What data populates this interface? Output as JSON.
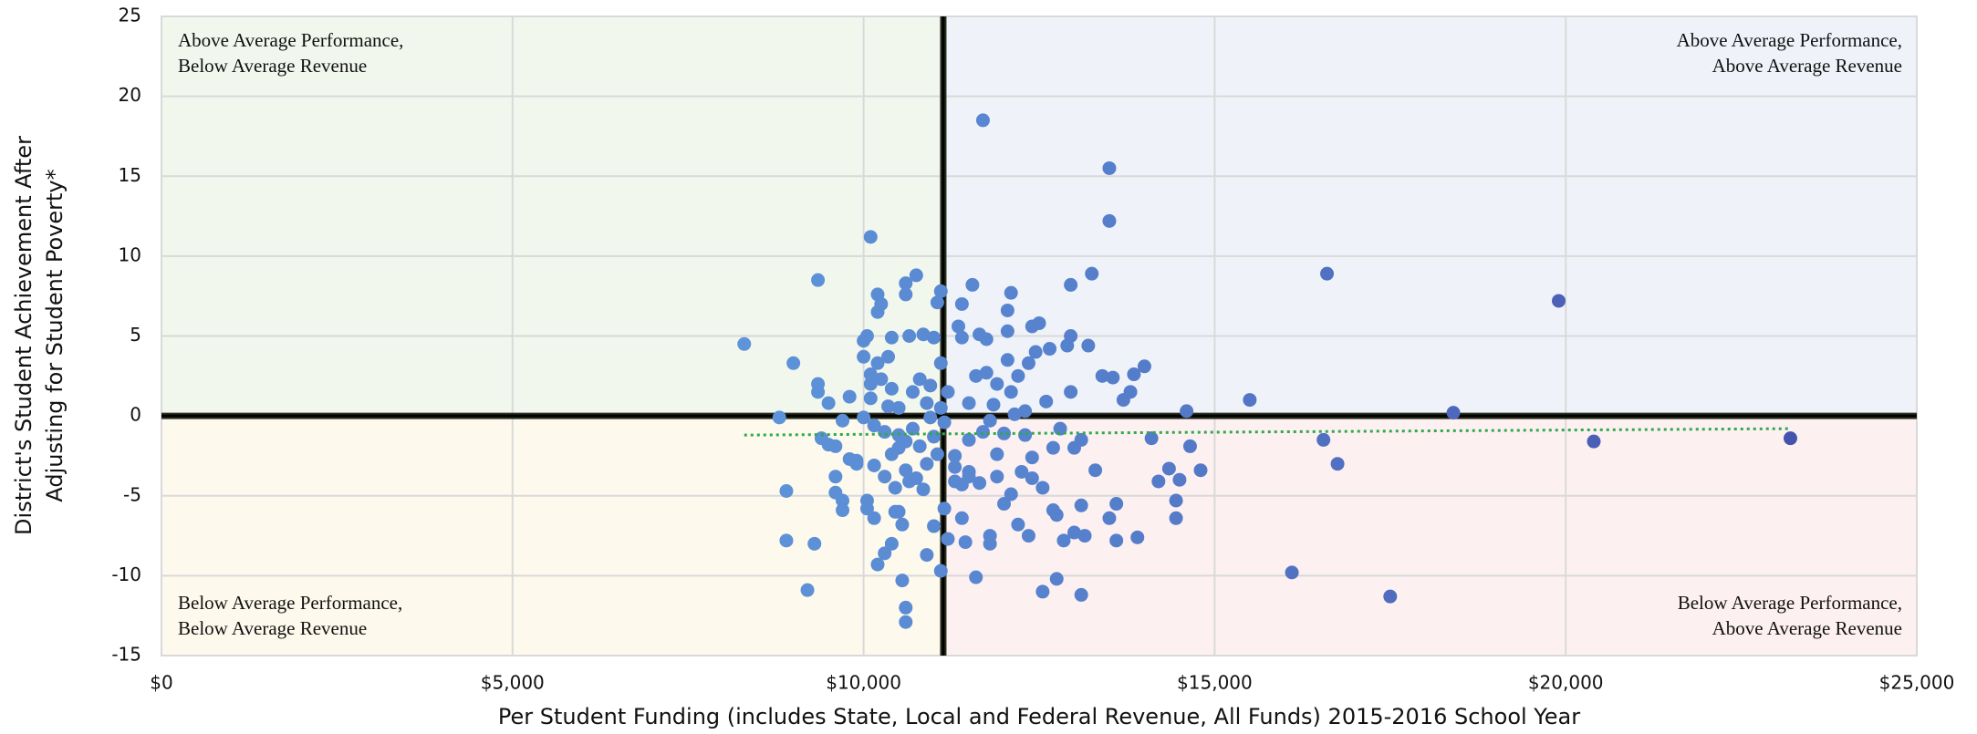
{
  "chart_data": {
    "type": "scatter",
    "x_label": "Per Student Funding (includes State, Local and Federal Revenue, All Funds) 2015-2016 School Year",
    "y_label": [
      "District's Student Achievement After",
      "Adjusting for Student Poverty*"
    ],
    "xlim": [
      0,
      25000
    ],
    "xticks": [
      {
        "value": 0,
        "label": "$0"
      },
      {
        "value": 5000,
        "label": "$5,000"
      },
      {
        "value": 10000,
        "label": "$10,000"
      },
      {
        "value": 15000,
        "label": "$15,000"
      },
      {
        "value": 20000,
        "label": "$20,000"
      },
      {
        "value": 25000,
        "label": "$25,000"
      }
    ],
    "ylim": [
      -15,
      25
    ],
    "yticks": [
      -15,
      -10,
      -5,
      0,
      5,
      10,
      15,
      20,
      25
    ],
    "grid": true,
    "mean_x": 11135,
    "mean_y": 0,
    "quadrant_colors": {
      "top-left": "#f2f7ee",
      "top-right": "#eff3f9",
      "bottom-left": "#fdf9ec",
      "bottom-right": "#fdf0f1"
    },
    "annotations": [
      {
        "corner": "top-left",
        "text": [
          "Above Average Performance,",
          "Below Average Revenue"
        ]
      },
      {
        "corner": "top-right",
        "text": [
          "Above Average Performance,",
          "Above Average Revenue"
        ]
      },
      {
        "corner": "bottom-left",
        "text": [
          "Below Average Performance,",
          "Below Average Revenue"
        ]
      },
      {
        "corner": "bottom-right",
        "text": [
          "Below Average Performance,",
          "Above Average Revenue"
        ]
      }
    ],
    "trend": {
      "x": [
        8300,
        23200
      ],
      "y": [
        -1.2,
        -0.8
      ],
      "color": "#2eaa4a"
    },
    "marker_colors": [
      "#5e95da",
      "#4553ae"
    ],
    "x": [
      8300,
      8800,
      8900,
      8900,
      9000,
      9200,
      9300,
      9350,
      9350,
      9350,
      9400,
      9500,
      9500,
      9600,
      9600,
      9600,
      9700,
      9700,
      9700,
      9800,
      9800,
      9900,
      9900,
      10000,
      10000,
      10000,
      10050,
      10050,
      10050,
      10100,
      10100,
      10100,
      10100,
      10150,
      10150,
      10150,
      10200,
      10200,
      10200,
      10200,
      10250,
      10250,
      10300,
      10300,
      10300,
      10350,
      10350,
      10400,
      10400,
      10400,
      10400,
      10450,
      10450,
      10500,
      10500,
      10500,
      10500,
      10550,
      10550,
      10600,
      10600,
      10600,
      10600,
      10600,
      10650,
      10650,
      10700,
      10700,
      10750,
      10750,
      10800,
      10800,
      10850,
      10850,
      10900,
      10900,
      10950,
      10950,
      11000,
      11000,
      11000,
      11050,
      11050,
      11100,
      11100,
      11100,
      11100,
      11150,
      11150,
      11200,
      11200,
      11300,
      11300,
      11350,
      11400,
      11400,
      11400,
      11450,
      11500,
      11500,
      11500,
      11550,
      11600,
      11600,
      11650,
      11650,
      11700,
      11700,
      11750,
      11750,
      11800,
      11800,
      11850,
      11900,
      11900,
      12000,
      12000,
      12050,
      12050,
      12050,
      12100,
      12100,
      12150,
      12200,
      12200,
      12250,
      12300,
      12350,
      12350,
      12400,
      12400,
      12450,
      12500,
      12550,
      12550,
      12600,
      12650,
      12700,
      12700,
      12750,
      12750,
      12800,
      12850,
      12900,
      12950,
      12950,
      12950,
      13000,
      13000,
      13100,
      13100,
      13100,
      13150,
      13200,
      13250,
      13300,
      13400,
      13500,
      13500,
      13500,
      13550,
      13600,
      13600,
      13700,
      13800,
      13850,
      13900,
      14000,
      14100,
      14200,
      14350,
      14450,
      14450,
      14500,
      14600,
      14650,
      14800,
      15500,
      16100,
      16550,
      16600,
      16750,
      17500,
      18400,
      19900,
      20400,
      23200,
      11300,
      11500,
      11800,
      12100,
      12300,
      11900,
      10900,
      10600,
      12400,
      11400
    ],
    "y": [
      4.5,
      -0.1,
      -4.7,
      -7.8,
      3.3,
      -10.9,
      -8.0,
      8.5,
      2.0,
      1.5,
      -1.4,
      0.8,
      -1.8,
      -1.9,
      -3.8,
      -4.8,
      -5.3,
      -5.9,
      -0.3,
      -2.7,
      1.2,
      -2.8,
      -3.0,
      4.7,
      -0.1,
      3.7,
      5.0,
      -5.3,
      -5.8,
      11.2,
      2.6,
      2.0,
      1.1,
      -6.4,
      -0.6,
      -3.1,
      -9.3,
      7.6,
      6.5,
      3.3,
      7.0,
      2.3,
      -3.8,
      -1.0,
      -8.6,
      3.7,
      0.6,
      -8.0,
      4.9,
      1.7,
      -2.4,
      -4.5,
      -6.0,
      -1.2,
      -2.0,
      0.5,
      -6.0,
      -10.3,
      -6.8,
      8.3,
      7.6,
      -12.0,
      -12.9,
      -3.4,
      5.0,
      -4.1,
      -0.8,
      1.5,
      8.8,
      -3.9,
      2.3,
      -1.9,
      5.1,
      -4.6,
      -8.7,
      -3.0,
      1.9,
      -0.1,
      4.9,
      -6.9,
      -1.3,
      7.1,
      -2.4,
      -9.7,
      7.8,
      3.3,
      0.5,
      -0.4,
      -5.8,
      -7.7,
      1.5,
      -2.5,
      -4.1,
      5.6,
      7.0,
      4.9,
      -6.4,
      -7.9,
      -3.5,
      0.8,
      -1.5,
      8.2,
      -10.1,
      2.5,
      -4.2,
      5.1,
      18.5,
      -1.0,
      4.8,
      2.7,
      -7.5,
      -8.0,
      0.7,
      -3.8,
      -2.4,
      -5.5,
      -1.1,
      6.6,
      5.3,
      3.5,
      7.7,
      -4.9,
      0.1,
      -6.8,
      2.5,
      -3.5,
      -1.2,
      3.3,
      -7.5,
      5.6,
      -3.9,
      4.0,
      5.8,
      -11.0,
      -4.5,
      0.9,
      4.2,
      -5.9,
      -2.0,
      -10.2,
      -6.2,
      -0.8,
      -7.8,
      4.4,
      8.2,
      5.0,
      1.5,
      -7.3,
      -2.0,
      -11.2,
      -5.6,
      -1.5,
      -7.5,
      4.4,
      8.9,
      -3.4,
      2.5,
      15.5,
      12.2,
      -6.4,
      2.4,
      -5.5,
      -7.8,
      1.0,
      1.5,
      2.6,
      -7.6,
      3.1,
      -1.4,
      -4.1,
      -3.3,
      -5.3,
      -6.4,
      -4.0,
      0.3,
      -1.9,
      -3.4,
      1.0,
      -9.8,
      -1.5,
      8.9,
      -3.0,
      -11.3,
      0.2,
      7.2,
      -1.6,
      -1.4,
      -3.2,
      -3.8,
      -0.3,
      1.5,
      0.3,
      2.0,
      0.8,
      -1.6,
      -2.6,
      -4.3
    ]
  }
}
